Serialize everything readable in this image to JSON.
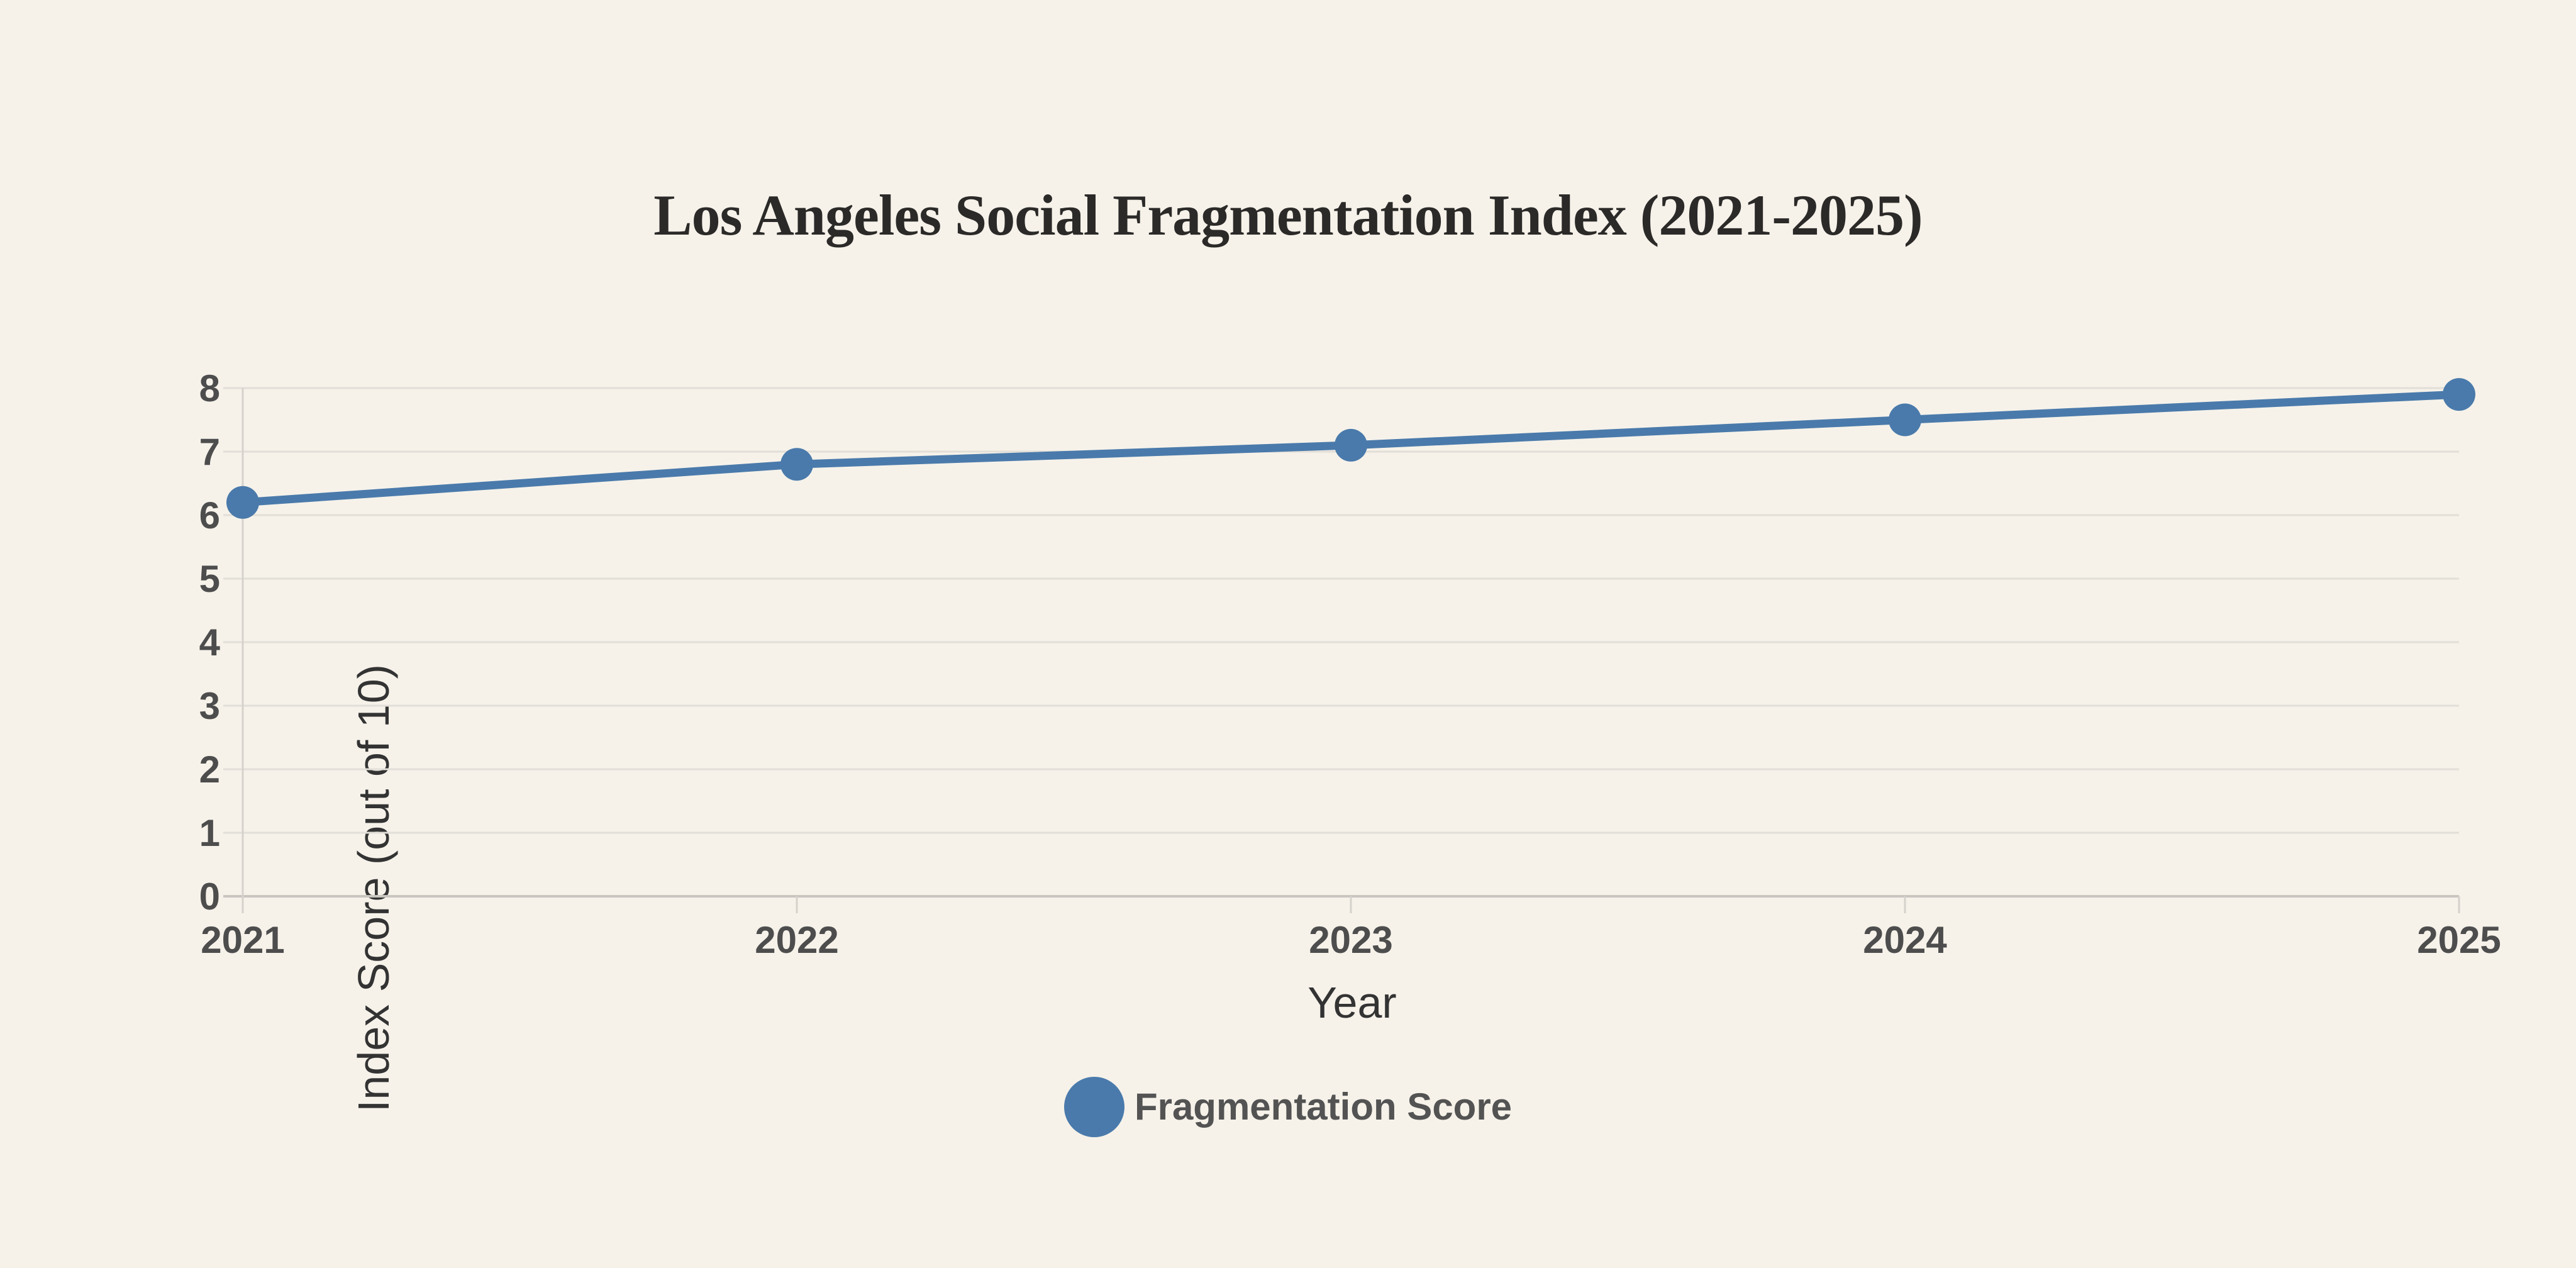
{
  "title": "Los Angeles Social Fragmentation Index (2021-2025)",
  "legend": {
    "label": "Fragmentation Score"
  },
  "colors": {
    "accent_blue": "#4a7aab",
    "background": "#f6f2ea",
    "gridline": "#e2dfd8",
    "axis_line": "#c9c6c0",
    "tick_mark": "#d5d2cc",
    "title_text": "#2b2a28",
    "tick_text": "#4d4d4d",
    "axis_label_text": "#333333",
    "legend_text": "#535353"
  },
  "chart_data": {
    "type": "line",
    "title": "Los Angeles Social Fragmentation Index (2021-2025)",
    "categories": [
      "2021",
      "2022",
      "2023",
      "2024",
      "2025"
    ],
    "series": [
      {
        "name": "Fragmentation Score",
        "values": [
          6.2,
          6.8,
          7.1,
          7.5,
          7.9
        ]
      }
    ],
    "xlabel": "Year",
    "ylabel": "Index Score (out of 10)",
    "ylim": [
      0,
      8
    ],
    "y_ticks": [
      0,
      1,
      2,
      3,
      4,
      5,
      6,
      7,
      8
    ],
    "grid": "horizontal",
    "legend_position": "bottom",
    "marker_style": "filled-circle",
    "line_color": "#4a7aab"
  }
}
